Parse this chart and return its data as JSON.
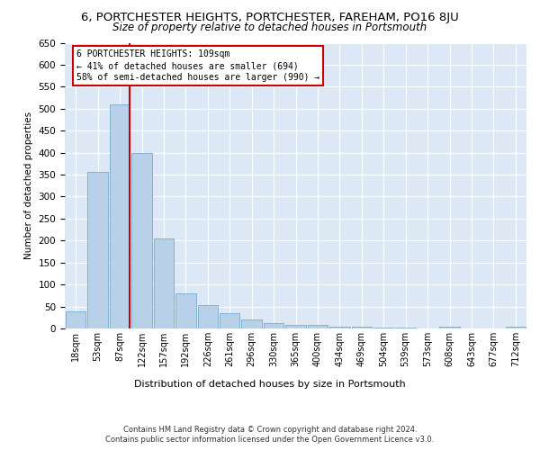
{
  "title_line1": "6, PORTCHESTER HEIGHTS, PORTCHESTER, FAREHAM, PO16 8JU",
  "title_line2": "Size of property relative to detached houses in Portsmouth",
  "xlabel": "Distribution of detached houses by size in Portsmouth",
  "ylabel": "Number of detached properties",
  "categories": [
    "18sqm",
    "53sqm",
    "87sqm",
    "122sqm",
    "157sqm",
    "192sqm",
    "226sqm",
    "261sqm",
    "296sqm",
    "330sqm",
    "365sqm",
    "400sqm",
    "434sqm",
    "469sqm",
    "504sqm",
    "539sqm",
    "573sqm",
    "608sqm",
    "643sqm",
    "677sqm",
    "712sqm"
  ],
  "values": [
    38,
    357,
    510,
    400,
    204,
    79,
    54,
    35,
    20,
    12,
    9,
    8,
    5,
    4,
    3,
    2,
    1,
    5,
    1,
    0,
    5
  ],
  "bar_color": "#b8d0e8",
  "bar_edge_color": "#7aaacb",
  "vline_color": "#cc0000",
  "vline_bin_index": 2,
  "annotation_line1": "6 PORTCHESTER HEIGHTS: 109sqm",
  "annotation_line2": "← 41% of detached houses are smaller (694)",
  "annotation_line3": "58% of semi-detached houses are larger (990) →",
  "ylim_max": 650,
  "ytick_step": 50,
  "footer_line1": "Contains HM Land Registry data © Crown copyright and database right 2024.",
  "footer_line2": "Contains public sector information licensed under the Open Government Licence v3.0.",
  "bg_color": "#dce8f5"
}
